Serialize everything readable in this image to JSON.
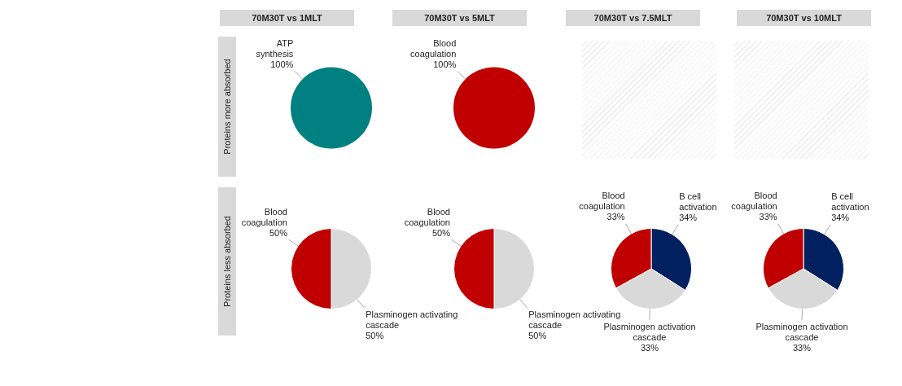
{
  "chart_data": [
    {
      "type": "pie",
      "title": "70M30T vs 1MLT",
      "ylabel": "Proteins more absorbed",
      "categories": [
        "ATP synthesis"
      ],
      "values": [
        100
      ],
      "colors": [
        "#008080"
      ],
      "value_labels": [
        "100%"
      ]
    },
    {
      "type": "pie",
      "title": "70M30T vs 5MLT",
      "categories": [
        "Blood coagulation"
      ],
      "values": [
        100
      ],
      "colors": [
        "#c00000"
      ],
      "value_labels": [
        "100%"
      ]
    },
    {
      "type": "other",
      "title": "70M30T vs 7.5MLT"
    },
    {
      "type": "other",
      "title": "70M30T vs 10MLT"
    },
    {
      "type": "pie",
      "ylabel": "Proteins less absorbed",
      "categories": [
        "Plasminogen activating cascade",
        "Blood coagulation"
      ],
      "values": [
        50,
        50
      ],
      "colors": [
        "#d9d9d9",
        "#c00000"
      ],
      "value_labels": [
        "50%",
        "50%"
      ]
    },
    {
      "type": "pie",
      "categories": [
        "Plasminogen activating cascade",
        "Blood coagulation"
      ],
      "values": [
        50,
        50
      ],
      "colors": [
        "#d9d9d9",
        "#c00000"
      ],
      "value_labels": [
        "50%",
        "50%"
      ]
    },
    {
      "type": "pie",
      "categories": [
        "B cell activation",
        "Plasminogen activation cascade",
        "Blood coagulation"
      ],
      "values": [
        34,
        33,
        33
      ],
      "colors": [
        "#002060",
        "#d9d9d9",
        "#c00000"
      ],
      "value_labels": [
        "34%",
        "33%",
        "33%"
      ]
    },
    {
      "type": "pie",
      "categories": [
        "B cell activation",
        "Plasminogen activation cascade",
        "Blood coagulation"
      ],
      "values": [
        34,
        33,
        33
      ],
      "colors": [
        "#002060",
        "#d9d9d9",
        "#c00000"
      ],
      "value_labels": [
        "34%",
        "33%",
        "33%"
      ]
    }
  ]
}
